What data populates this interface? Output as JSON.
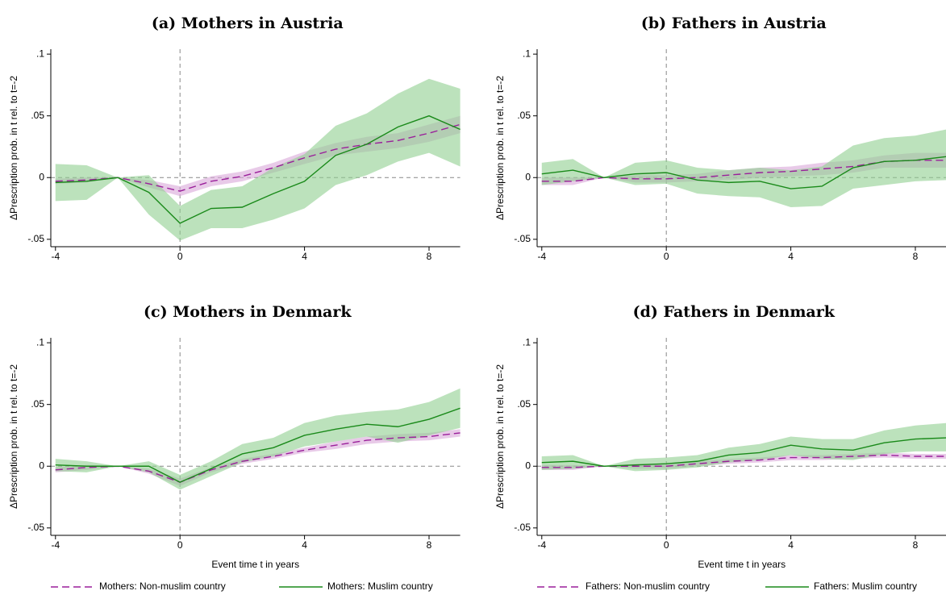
{
  "chart_data": [
    {
      "type": "line",
      "title": "(a) Mothers in Austria",
      "ylabel": "ΔPrescription prob. in t rel. to t=-2",
      "x": [
        -4,
        -3,
        -2,
        -1,
        0,
        1,
        2,
        3,
        4,
        5,
        6,
        7,
        8,
        9
      ],
      "xlim": [
        -4.15,
        9
      ],
      "xticks": [
        -4,
        0,
        4,
        8
      ],
      "ylim": [
        -0.056,
        0.104
      ],
      "yticks": [
        {
          "value": -0.05,
          "label": "-.05"
        },
        0,
        {
          "value": 0.05,
          "label": ".05"
        },
        {
          "value": 0.1,
          "label": ".1"
        }
      ],
      "hline": 0,
      "vline": 0,
      "series": [
        {
          "color": "#9a1f9a",
          "band_color": "#d9a6d9",
          "dash": true,
          "values": [
            -0.003,
            -0.002,
            0,
            -0.005,
            -0.011,
            -0.003,
            0.001,
            0.008,
            0.016,
            0.023,
            0.027,
            0.03,
            0.036,
            0.043
          ],
          "lower": [
            -0.005,
            -0.004,
            0,
            -0.008,
            -0.015,
            -0.007,
            -0.003,
            0.004,
            0.011,
            0.018,
            0.021,
            0.024,
            0.029,
            0.036
          ],
          "upper": [
            -0.001,
            0,
            0,
            -0.002,
            -0.007,
            0.001,
            0.005,
            0.012,
            0.021,
            0.028,
            0.033,
            0.036,
            0.043,
            0.05
          ]
        },
        {
          "color": "#1a8a1a",
          "band_color": "#8fcf8f",
          "dash": false,
          "values": [
            -0.004,
            -0.003,
            0,
            -0.012,
            -0.037,
            -0.025,
            -0.024,
            -0.013,
            -0.003,
            0.018,
            0.027,
            0.041,
            0.05,
            0.039
          ],
          "lower": [
            -0.019,
            -0.018,
            0,
            -0.03,
            -0.051,
            -0.041,
            -0.041,
            -0.034,
            -0.025,
            -0.006,
            0.002,
            0.013,
            0.02,
            0.009
          ],
          "upper": [
            0.011,
            0.01,
            0,
            0.002,
            -0.023,
            -0.01,
            -0.007,
            0.008,
            0.019,
            0.042,
            0.052,
            0.068,
            0.08,
            0.072
          ]
        }
      ]
    },
    {
      "type": "line",
      "title": "(b) Fathers in Austria",
      "ylabel": "ΔPrescription prob. in t rel. to t=-2",
      "x": [
        -4,
        -3,
        -2,
        -1,
        0,
        1,
        2,
        3,
        4,
        5,
        6,
        7,
        8,
        9
      ],
      "xlim": [
        -4.15,
        9
      ],
      "xticks": [
        -4,
        0,
        4,
        8
      ],
      "ylim": [
        -0.056,
        0.104
      ],
      "yticks": [
        {
          "value": -0.05,
          "label": "-.05"
        },
        0,
        {
          "value": 0.05,
          "label": ".05"
        },
        {
          "value": 0.1,
          "label": ".1"
        }
      ],
      "hline": 0,
      "vline": 0,
      "series": [
        {
          "color": "#9a1f9a",
          "band_color": "#d9a6d9",
          "dash": true,
          "values": [
            -0.003,
            -0.003,
            0,
            -0.001,
            -0.001,
            0,
            0.002,
            0.004,
            0.005,
            0.007,
            0.009,
            0.013,
            0.014,
            0.014
          ],
          "lower": [
            -0.006,
            -0.006,
            0,
            -0.004,
            -0.004,
            -0.003,
            -0.002,
            0,
            0.001,
            0.002,
            0.004,
            0.008,
            0.008,
            0.008
          ],
          "upper": [
            0,
            0,
            0,
            0.002,
            0.002,
            0.003,
            0.006,
            0.008,
            0.009,
            0.012,
            0.014,
            0.018,
            0.02,
            0.02
          ]
        },
        {
          "color": "#1a8a1a",
          "band_color": "#8fcf8f",
          "dash": false,
          "values": [
            0.003,
            0.006,
            0,
            0.003,
            0.004,
            -0.002,
            -0.004,
            -0.003,
            -0.009,
            -0.007,
            0.008,
            0.013,
            0.014,
            0.017
          ],
          "lower": [
            -0.006,
            -0.003,
            0,
            -0.006,
            -0.005,
            -0.013,
            -0.015,
            -0.016,
            -0.024,
            -0.023,
            -0.009,
            -0.006,
            -0.003,
            -0.002
          ],
          "upper": [
            0.012,
            0.015,
            0,
            0.012,
            0.014,
            0.008,
            0.006,
            0.008,
            0.006,
            0.009,
            0.026,
            0.032,
            0.034,
            0.039
          ]
        }
      ]
    },
    {
      "type": "line",
      "title": "(c) Mothers in Denmark",
      "ylabel": "ΔPrescription prob. in t rel. to t=-2",
      "xlabel": "Event time t in years",
      "x": [
        -4,
        -3,
        -2,
        -1,
        0,
        1,
        2,
        3,
        4,
        5,
        6,
        7,
        8,
        9
      ],
      "xlim": [
        -4.15,
        9
      ],
      "xticks": [
        -4,
        0,
        4,
        8
      ],
      "ylim": [
        -0.056,
        0.104
      ],
      "yticks": [
        {
          "value": -0.05,
          "label": "-.05"
        },
        0,
        {
          "value": 0.05,
          "label": ".05"
        },
        {
          "value": 0.1,
          "label": ".1"
        }
      ],
      "hline": 0,
      "vline": 0,
      "legend": "bottom",
      "series": [
        {
          "name": "Mothers: Non-muslim country",
          "color": "#9a1f9a",
          "band_color": "#d9a6d9",
          "dash": true,
          "values": [
            -0.003,
            -0.001,
            0,
            -0.004,
            -0.013,
            -0.003,
            0.004,
            0.008,
            0.013,
            0.017,
            0.021,
            0.023,
            0.024,
            0.027
          ],
          "lower": [
            -0.005,
            -0.003,
            0,
            -0.006,
            -0.016,
            -0.005,
            0.002,
            0.006,
            0.011,
            0.014,
            0.018,
            0.02,
            0.021,
            0.024
          ],
          "upper": [
            -0.001,
            0.001,
            0,
            -0.002,
            -0.01,
            -0.001,
            0.006,
            0.01,
            0.015,
            0.02,
            0.024,
            0.026,
            0.027,
            0.03
          ]
        },
        {
          "name": "Mothers: Muslim country",
          "color": "#1a8a1a",
          "band_color": "#8fcf8f",
          "dash": false,
          "values": [
            0.001,
            0,
            0,
            0,
            -0.013,
            -0.002,
            0.01,
            0.015,
            0.025,
            0.03,
            0.034,
            0.032,
            0.038,
            0.047
          ],
          "lower": [
            -0.004,
            -0.005,
            0,
            -0.005,
            -0.019,
            -0.008,
            0.003,
            0.008,
            0.016,
            0.02,
            0.024,
            0.019,
            0.025,
            0.031
          ],
          "upper": [
            0.006,
            0.004,
            0,
            0.004,
            -0.007,
            0.004,
            0.018,
            0.023,
            0.035,
            0.041,
            0.044,
            0.046,
            0.052,
            0.063
          ]
        }
      ]
    },
    {
      "type": "line",
      "title": "(d) Fathers in Denmark",
      "ylabel": "ΔPrescription prob. in t rel. to t=-2",
      "xlabel": "Event time t in years",
      "x": [
        -4,
        -3,
        -2,
        -1,
        0,
        1,
        2,
        3,
        4,
        5,
        6,
        7,
        8,
        9
      ],
      "xlim": [
        -4.15,
        9
      ],
      "xticks": [
        -4,
        0,
        4,
        8
      ],
      "ylim": [
        -0.056,
        0.104
      ],
      "yticks": [
        {
          "value": -0.05,
          "label": "-.05"
        },
        0,
        {
          "value": 0.05,
          "label": ".05"
        },
        {
          "value": 0.1,
          "label": ".1"
        }
      ],
      "hline": 0,
      "vline": 0,
      "legend": "bottom",
      "series": [
        {
          "name": "Fathers: Non-muslim country",
          "color": "#9a1f9a",
          "band_color": "#d9a6d9",
          "dash": true,
          "values": [
            -0.001,
            -0.001,
            0,
            0,
            0,
            0.002,
            0.004,
            0.005,
            0.007,
            0.007,
            0.008,
            0.009,
            0.008,
            0.008
          ],
          "lower": [
            -0.003,
            -0.003,
            0,
            -0.002,
            -0.002,
            0,
            0.002,
            0.003,
            0.005,
            0.005,
            0.006,
            0.007,
            0.006,
            0.006
          ],
          "upper": [
            0.001,
            0.001,
            0,
            0.002,
            0.002,
            0.004,
            0.006,
            0.007,
            0.009,
            0.009,
            0.01,
            0.011,
            0.01,
            0.01
          ]
        },
        {
          "name": "Fathers: Muslim country",
          "color": "#1a8a1a",
          "band_color": "#8fcf8f",
          "dash": false,
          "values": [
            0.003,
            0.004,
            0,
            0.001,
            0.002,
            0.004,
            0.009,
            0.011,
            0.017,
            0.014,
            0.013,
            0.019,
            0.022,
            0.023
          ],
          "lower": [
            -0.003,
            -0.002,
            0,
            -0.004,
            -0.003,
            -0.001,
            0.003,
            0.005,
            0.009,
            0.006,
            0.005,
            0.01,
            0.012,
            0.012
          ],
          "upper": [
            0.008,
            0.009,
            0,
            0.006,
            0.007,
            0.009,
            0.015,
            0.018,
            0.024,
            0.022,
            0.022,
            0.029,
            0.033,
            0.035
          ]
        }
      ]
    }
  ]
}
